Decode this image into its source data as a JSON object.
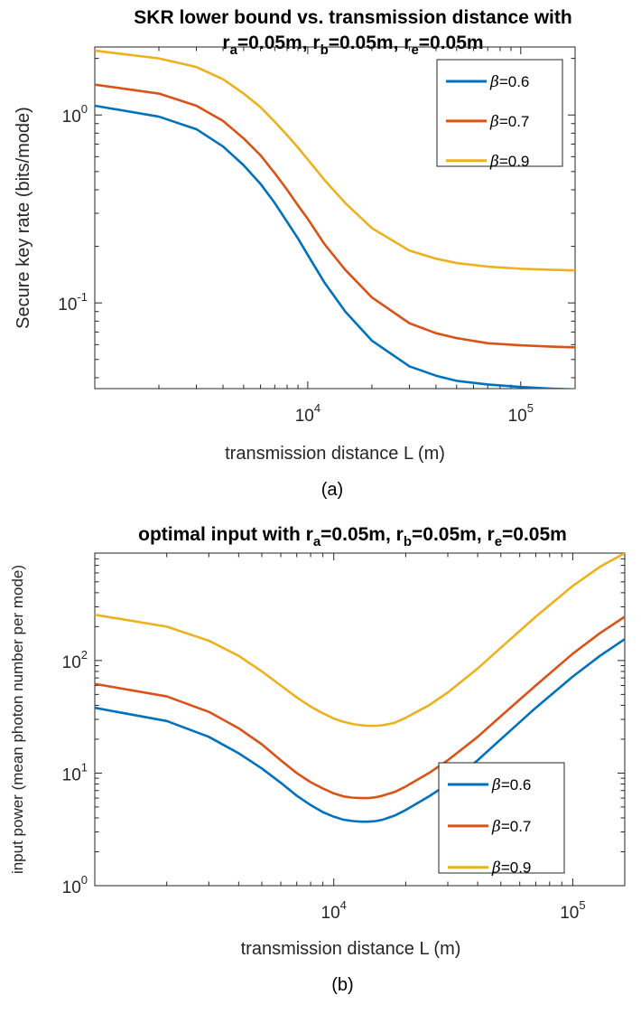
{
  "chart_data": [
    {
      "type": "line",
      "title_parts": [
        "SKR lower bound vs. transmission distance with",
        "r",
        "a",
        "=0.05m, ",
        "r",
        "b",
        "=0.05m, ",
        "r",
        "e",
        "=0.05m"
      ],
      "xlabel": "transmission distance L (m)",
      "ylabel": "Secure key rate (bits/mode)",
      "caption": "(a)",
      "xscale": "log",
      "yscale": "log",
      "xlim": [
        1000,
        180000
      ],
      "ylim": [
        0.035,
        2.3
      ],
      "xticks": [
        {
          "base": "10",
          "exp": "4",
          "value": 10000
        },
        {
          "base": "10",
          "exp": "5",
          "value": 100000
        }
      ],
      "yticks": [
        {
          "base": "10",
          "exp": "-1",
          "value": 0.1
        },
        {
          "base": "10",
          "exp": "0",
          "value": 1
        }
      ],
      "legend_position": "top-right",
      "x": [
        1000,
        2000,
        3000,
        4000,
        5000,
        6000,
        7000,
        8000,
        9000,
        10000,
        12000,
        15000,
        20000,
        30000,
        40000,
        50000,
        70000,
        100000,
        140000,
        180000
      ],
      "series": [
        {
          "name_prefix": "β",
          "name_suffix": "=0.6",
          "color": "#0072BD",
          "values": [
            1.12,
            0.98,
            0.84,
            0.68,
            0.54,
            0.43,
            0.34,
            0.27,
            0.22,
            0.18,
            0.128,
            0.09,
            0.063,
            0.046,
            0.041,
            0.0385,
            0.0368,
            0.0357,
            0.035,
            0.0347
          ]
        },
        {
          "name_prefix": "β",
          "name_suffix": "=0.7",
          "color": "#D95319",
          "values": [
            1.45,
            1.3,
            1.12,
            0.93,
            0.75,
            0.61,
            0.49,
            0.4,
            0.33,
            0.28,
            0.205,
            0.15,
            0.107,
            0.078,
            0.069,
            0.065,
            0.061,
            0.0595,
            0.0585,
            0.058
          ]
        },
        {
          "name_prefix": "β",
          "name_suffix": "=0.9",
          "color": "#EDB120",
          "values": [
            2.2,
            2.0,
            1.8,
            1.55,
            1.3,
            1.1,
            0.92,
            0.78,
            0.67,
            0.58,
            0.45,
            0.34,
            0.25,
            0.19,
            0.172,
            0.163,
            0.156,
            0.152,
            0.15,
            0.149
          ]
        }
      ]
    },
    {
      "type": "line",
      "title_parts": [
        "optimal input with ",
        "r",
        "a",
        "=0.05m, ",
        "r",
        "b",
        "=0.05m, ",
        "r",
        "e",
        "=0.05m"
      ],
      "xlabel": "transmission distance L (m)",
      "ylabel": "input power (mean photon number per mode)",
      "caption": "(b)",
      "xscale": "log",
      "yscale": "log",
      "xlim": [
        1000,
        165000
      ],
      "ylim": [
        1,
        900
      ],
      "xticks": [
        {
          "base": "10",
          "exp": "4",
          "value": 10000
        },
        {
          "base": "10",
          "exp": "5",
          "value": 100000
        }
      ],
      "yticks": [
        {
          "base": "10",
          "exp": "0",
          "value": 1
        },
        {
          "base": "10",
          "exp": "1",
          "value": 10
        },
        {
          "base": "10",
          "exp": "2",
          "value": 100
        }
      ],
      "legend_position": "bottom-right",
      "x": [
        1000,
        2000,
        3000,
        4000,
        5000,
        6000,
        7000,
        8000,
        9000,
        10000,
        11000,
        12000,
        13000,
        14000,
        15000,
        16000,
        18000,
        20000,
        25000,
        30000,
        40000,
        50000,
        70000,
        100000,
        130000,
        165000
      ],
      "series": [
        {
          "name_prefix": "β",
          "name_suffix": "=0.6",
          "color": "#0072BD",
          "values": [
            38,
            29,
            21,
            15,
            11,
            8.2,
            6.3,
            5.2,
            4.5,
            4.1,
            3.85,
            3.75,
            3.7,
            3.7,
            3.75,
            3.85,
            4.2,
            4.7,
            6.2,
            8.0,
            13,
            20,
            38,
            72,
            110,
            155
          ]
        },
        {
          "name_prefix": "β",
          "name_suffix": "=0.7",
          "color": "#D95319",
          "values": [
            62,
            48,
            35,
            25,
            18,
            13,
            10,
            8.3,
            7.3,
            6.6,
            6.2,
            6.05,
            6.0,
            6.0,
            6.1,
            6.3,
            6.8,
            7.6,
            10,
            13,
            21,
            32,
            60,
            115,
            175,
            245
          ]
        },
        {
          "name_prefix": "β",
          "name_suffix": "=0.9",
          "color": "#EDB120",
          "values": [
            255,
            200,
            150,
            110,
            80,
            60,
            47,
            39,
            34,
            30.5,
            28.5,
            27.3,
            26.6,
            26.3,
            26.3,
            26.6,
            28,
            31,
            40,
            52,
            85,
            130,
            245,
            460,
            680,
            900
          ]
        }
      ]
    }
  ]
}
